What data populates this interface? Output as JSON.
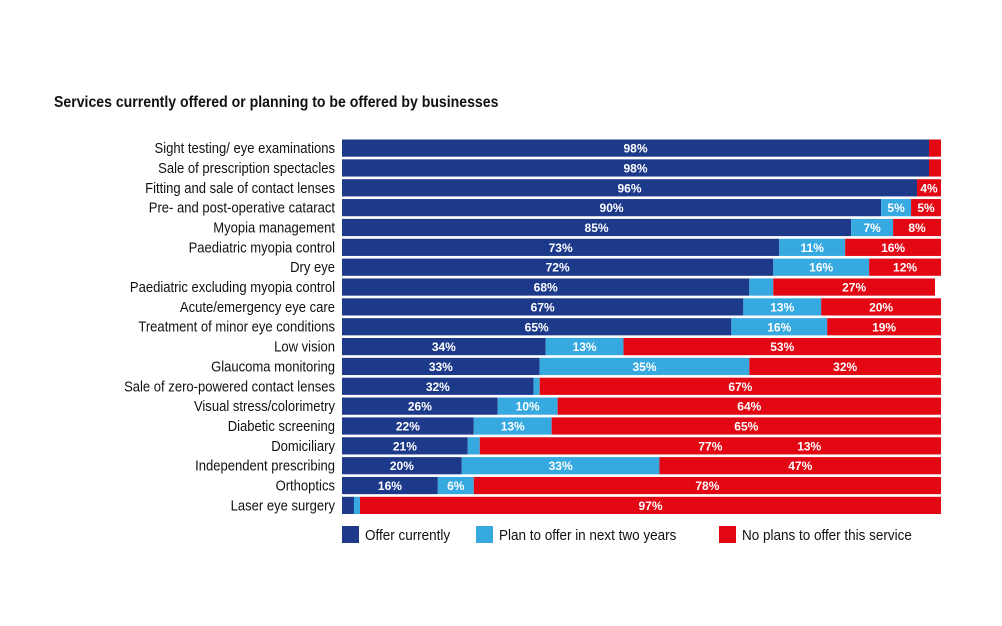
{
  "chart_data": {
    "type": "bar",
    "orientation": "horizontal",
    "stacked": true,
    "title": "Services currently offered or planning to be offered by businesses",
    "categories": [
      "Sight testing/ eye examinations",
      "Sale of prescription spectacles",
      "Fitting and sale of contact lenses",
      "Pre- and post-operative cataract",
      "Myopia management",
      "Paediatric myopia control",
      "Dry eye",
      "Paediatric excluding myopia control",
      "Acute/emergency eye care",
      "Treatment of minor eye conditions",
      "Low vision",
      "Glaucoma monitoring",
      "Sale of zero-powered contact lenses",
      "Visual stress/colorimetry",
      "Diabetic screening",
      "Domiciliary",
      "Independent prescribing",
      "Orthoptics",
      "Laser eye surgery"
    ],
    "series": [
      {
        "name": "Offer currently",
        "color": "#1d3a8a",
        "values": [
          98,
          98,
          96,
          90,
          85,
          73,
          72,
          68,
          67,
          65,
          34,
          33,
          32,
          26,
          22,
          21,
          20,
          16,
          2
        ],
        "labels": [
          "98%",
          "98%",
          "96%",
          "90%",
          "85%",
          "73%",
          "72%",
          "68%",
          "67%",
          "65%",
          "34%",
          "33%",
          "32%",
          "26%",
          "22%",
          "21%",
          "20%",
          "16%",
          ""
        ]
      },
      {
        "name": "Plan to offer in next two years",
        "color": "#36a9e1",
        "values": [
          0,
          0,
          0,
          5,
          7,
          11,
          16,
          4,
          13,
          16,
          13,
          35,
          1,
          10,
          13,
          2,
          33,
          6,
          1
        ],
        "labels": [
          "",
          "",
          "",
          "5%",
          "7%",
          "11%",
          "16%",
          "",
          "13%",
          "16%",
          "13%",
          "35%",
          "",
          "10%",
          "13%",
          "",
          "33%",
          "6%",
          ""
        ]
      },
      {
        "name": "No plans to offer this service",
        "color": "#e30613",
        "values": [
          2,
          2,
          4,
          5,
          8,
          16,
          12,
          27,
          20,
          19,
          53,
          32,
          67,
          64,
          65,
          77,
          47,
          78,
          97
        ],
        "labels": [
          "",
          "",
          "4%",
          "5%",
          "8%",
          "16%",
          "12%",
          "27%",
          "20%",
          "19%",
          "53%",
          "32%",
          "67%",
          "64%",
          "65%",
          "77%",
          "47%",
          "78%",
          "97%"
        ]
      }
    ],
    "extra_labels": [
      {
        "category": "Domiciliary",
        "text": "13%",
        "at_value": 78
      }
    ],
    "xlim": [
      0,
      100
    ],
    "grid": false,
    "legend": {
      "position": "bottom",
      "items": [
        "Offer currently",
        "Plan to offer in next two years",
        "No plans to offer this service"
      ]
    }
  }
}
